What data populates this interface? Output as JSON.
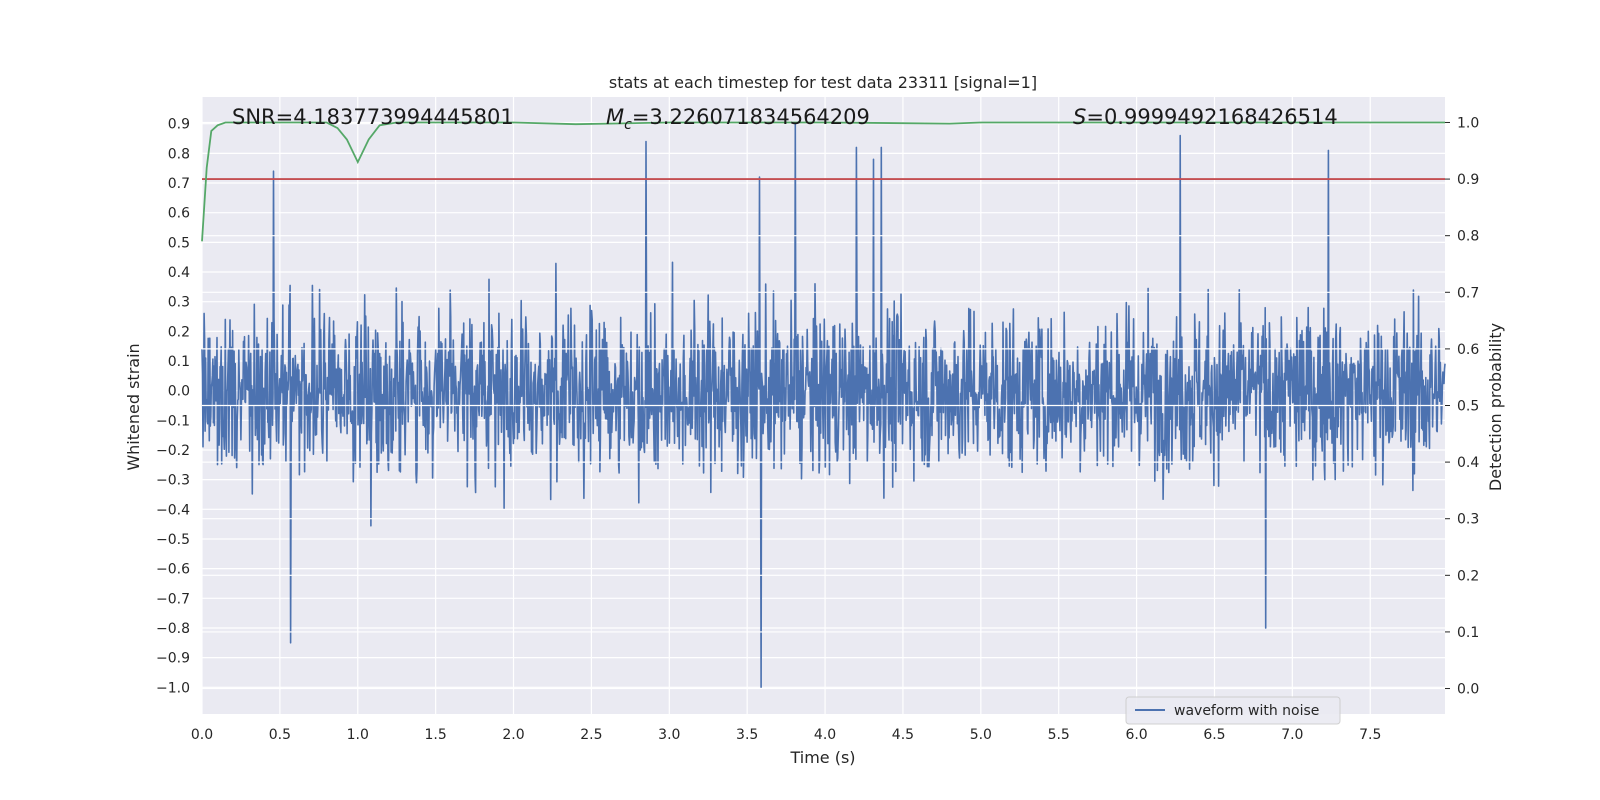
{
  "chart_data": {
    "type": "line",
    "title": "stats at each timestep for test data 23311 [signal=1]",
    "xlabel": "Time (s)",
    "ylabel": "Whitened strain",
    "y2label": "Detection probability",
    "xlim": [
      0.0,
      7.98
    ],
    "ylim": [
      -1.09,
      0.99
    ],
    "y2lim": [
      -0.045,
      1.045
    ],
    "xticks": [
      "0.0",
      "0.5",
      "1.0",
      "1.5",
      "2.0",
      "2.5",
      "3.0",
      "3.5",
      "4.0",
      "4.5",
      "5.0",
      "5.5",
      "6.0",
      "6.5",
      "7.0",
      "7.5"
    ],
    "yticks": [
      "0.9",
      "0.8",
      "0.7",
      "0.6",
      "0.5",
      "0.4",
      "0.3",
      "0.2",
      "0.1",
      "0.0",
      "−0.1",
      "−0.2",
      "−0.3",
      "−0.4",
      "−0.5",
      "−0.6",
      "−0.7",
      "−0.8",
      "−0.9",
      "−1.0"
    ],
    "y2ticks": [
      "1.0",
      "0.9",
      "0.8",
      "0.7",
      "0.6",
      "0.5",
      "0.4",
      "0.3",
      "0.2",
      "0.1",
      "0.0"
    ],
    "grid": true,
    "legend_position": "lower-right",
    "annotations": {
      "snr": "SNR=4.183773994445801",
      "mc_symbol": "M",
      "mc_sub": "c",
      "mc_value": "=3.226071834564209",
      "s_symbol": "S",
      "s_value": "=0.9999492168426514"
    },
    "series": [
      {
        "name": "waveform with noise",
        "axis": "left",
        "color": "#4c72b0",
        "render": "dense-noise",
        "typical_envelope": [
          -0.45,
          0.5
        ],
        "extreme_peaks": {
          "x": [
            0.46,
            0.57,
            0.57,
            2.85,
            3.59,
            3.58,
            3.81,
            4.2,
            4.31,
            4.36,
            6.28,
            7.23,
            6.83
          ],
          "y": [
            0.74,
            -0.82,
            -0.85,
            0.84,
            -1.0,
            0.72,
            0.9,
            0.82,
            0.78,
            0.82,
            0.86,
            0.81,
            -0.8
          ]
        }
      },
      {
        "name": "detection probability",
        "axis": "right",
        "color": "#55a868",
        "x": [
          0.0,
          0.03,
          0.06,
          0.1,
          0.15,
          0.3,
          0.8,
          0.87,
          0.93,
          1.0,
          1.07,
          1.14,
          1.25,
          2.0,
          2.4,
          3.0,
          4.0,
          4.8,
          5.0,
          6.0,
          7.0,
          7.98
        ],
        "y": [
          0.79,
          0.92,
          0.985,
          0.995,
          1.0,
          1.0,
          1.0,
          0.99,
          0.97,
          0.93,
          0.97,
          0.995,
          1.0,
          1.0,
          0.997,
          1.0,
          1.0,
          0.998,
          1.0,
          1.0,
          1.0,
          1.0
        ]
      },
      {
        "name": "threshold",
        "axis": "right",
        "color": "#c44e52",
        "value": 0.9
      }
    ]
  }
}
